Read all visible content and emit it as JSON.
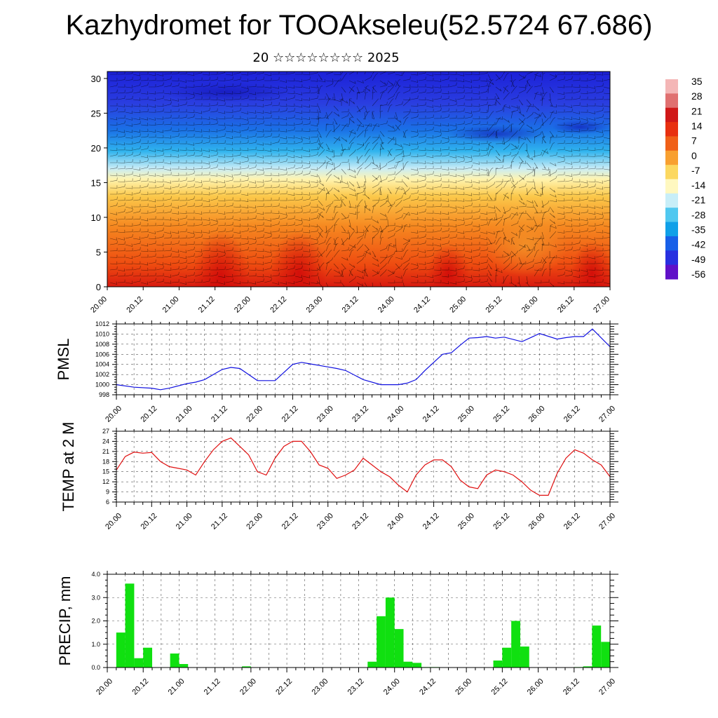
{
  "title": "Kazhydromet for TOOAkseleu(52.5724 67.686)",
  "subtitle": "20 ☆☆☆☆☆☆☆☆ 2025",
  "time_labels": [
    "20.00",
    "20.12",
    "21.00",
    "21.12",
    "22.00",
    "22.12",
    "23.00",
    "23.12",
    "24.00",
    "24.12",
    "25.00",
    "25.12",
    "26.00",
    "26.12",
    "27.00"
  ],
  "chart_data": [
    {
      "type": "heatmap",
      "name": "cross-section",
      "y_ticks": [
        0,
        5,
        10,
        15,
        20,
        25,
        30
      ],
      "ylim": [
        0,
        31
      ],
      "colorbar_labels": [
        "35",
        "28",
        "21",
        "14",
        "7",
        "0",
        "-7",
        "-14",
        "-21",
        "-28",
        "-35",
        "-42",
        "-49",
        "-56"
      ],
      "colorbar_colors": [
        "#f4b6b6",
        "#e07070",
        "#d01818",
        "#e83010",
        "#f06018",
        "#f8a030",
        "#fcd860",
        "#fff8c0",
        "#c8eef8",
        "#50c8f0",
        "#10a0e8",
        "#1860e8",
        "#2830e0",
        "#6010c8"
      ]
    },
    {
      "type": "line",
      "ylabel": "PMSL",
      "y_ticks": [
        998,
        1000,
        1002,
        1004,
        1006,
        1008,
        1010,
        1012
      ],
      "ylim": [
        998,
        1012
      ],
      "color": "#1010e0",
      "x_hours": [
        0,
        6,
        12,
        15,
        18,
        24,
        27,
        30,
        36,
        39,
        42,
        48,
        54,
        60,
        63,
        66,
        72,
        75,
        78,
        84,
        90,
        96,
        99,
        102,
        105,
        108,
        111,
        114,
        117,
        120,
        123,
        126,
        129,
        132,
        138,
        144,
        150,
        153,
        156,
        159,
        162,
        168
      ],
      "values": [
        1000.0,
        999.5,
        999.3,
        999.0,
        999.3,
        1000.2,
        1000.5,
        1001.0,
        1003.0,
        1003.4,
        1003.2,
        1000.8,
        1000.8,
        1004.0,
        1004.4,
        1004.1,
        1003.5,
        1003.2,
        1002.8,
        1001.0,
        1000.0,
        1000.0,
        1000.3,
        1001.0,
        1002.8,
        1004.4,
        1006.0,
        1006.3,
        1007.8,
        1009.2,
        1009.3,
        1009.5,
        1009.2,
        1009.4,
        1008.5,
        1010.1,
        1009.0,
        1009.3,
        1009.5,
        1009.5,
        1011.0,
        1007.5
      ]
    },
    {
      "type": "line",
      "ylabel": "TEMP at 2 M",
      "y_ticks": [
        6,
        9,
        12,
        15,
        18,
        21,
        24,
        27
      ],
      "ylim": [
        6,
        27
      ],
      "color": "#e01010",
      "x_hours": [
        0,
        3,
        6,
        9,
        12,
        15,
        18,
        21,
        24,
        27,
        30,
        33,
        36,
        39,
        42,
        45,
        48,
        51,
        54,
        57,
        60,
        63,
        66,
        69,
        72,
        75,
        78,
        81,
        84,
        87,
        90,
        93,
        96,
        99,
        102,
        105,
        108,
        111,
        114,
        117,
        120,
        123,
        126,
        129,
        132,
        135,
        138,
        141,
        144,
        147,
        150,
        153,
        156,
        159,
        162,
        165,
        168
      ],
      "values": [
        15.5,
        19.5,
        20.8,
        20.5,
        20.7,
        18.0,
        16.5,
        16.0,
        15.5,
        14.0,
        18.0,
        21.5,
        24.0,
        25.0,
        22.5,
        20.0,
        15.0,
        14.0,
        19.0,
        22.5,
        24.0,
        24.0,
        21.0,
        17.0,
        16.0,
        13.0,
        14.0,
        15.5,
        19.0,
        17.0,
        15.0,
        13.5,
        11.0,
        9.0,
        14.0,
        17.0,
        18.5,
        18.5,
        16.5,
        12.5,
        10.5,
        10.0,
        14.0,
        15.5,
        15.0,
        14.0,
        12.0,
        9.5,
        8.0,
        8.0,
        14.5,
        19.0,
        21.5,
        20.5,
        18.5,
        17.0,
        13.5
      ]
    },
    {
      "type": "bar",
      "ylabel": "PRECIP, mm",
      "y_ticks": [
        "0.0",
        "1.0",
        "2.0",
        "3.0",
        "4.0"
      ],
      "ylim": [
        0,
        4
      ],
      "color": "#10e010",
      "x_hours": [
        6,
        9,
        12,
        15,
        18,
        24,
        27,
        48,
        90,
        93,
        96,
        99,
        102,
        105,
        108,
        111,
        132,
        135,
        138,
        141,
        144,
        159,
        162,
        165,
        168
      ],
      "values": [
        1.5,
        3.6,
        0.4,
        0.85,
        0.0,
        0.6,
        0.15,
        0.05,
        0.25,
        2.2,
        3.0,
        1.65,
        0.25,
        0.2,
        0.02,
        0.02,
        0.3,
        0.85,
        2.0,
        0.9,
        0.0,
        0.02,
        0.05,
        1.8,
        1.1
      ]
    }
  ]
}
